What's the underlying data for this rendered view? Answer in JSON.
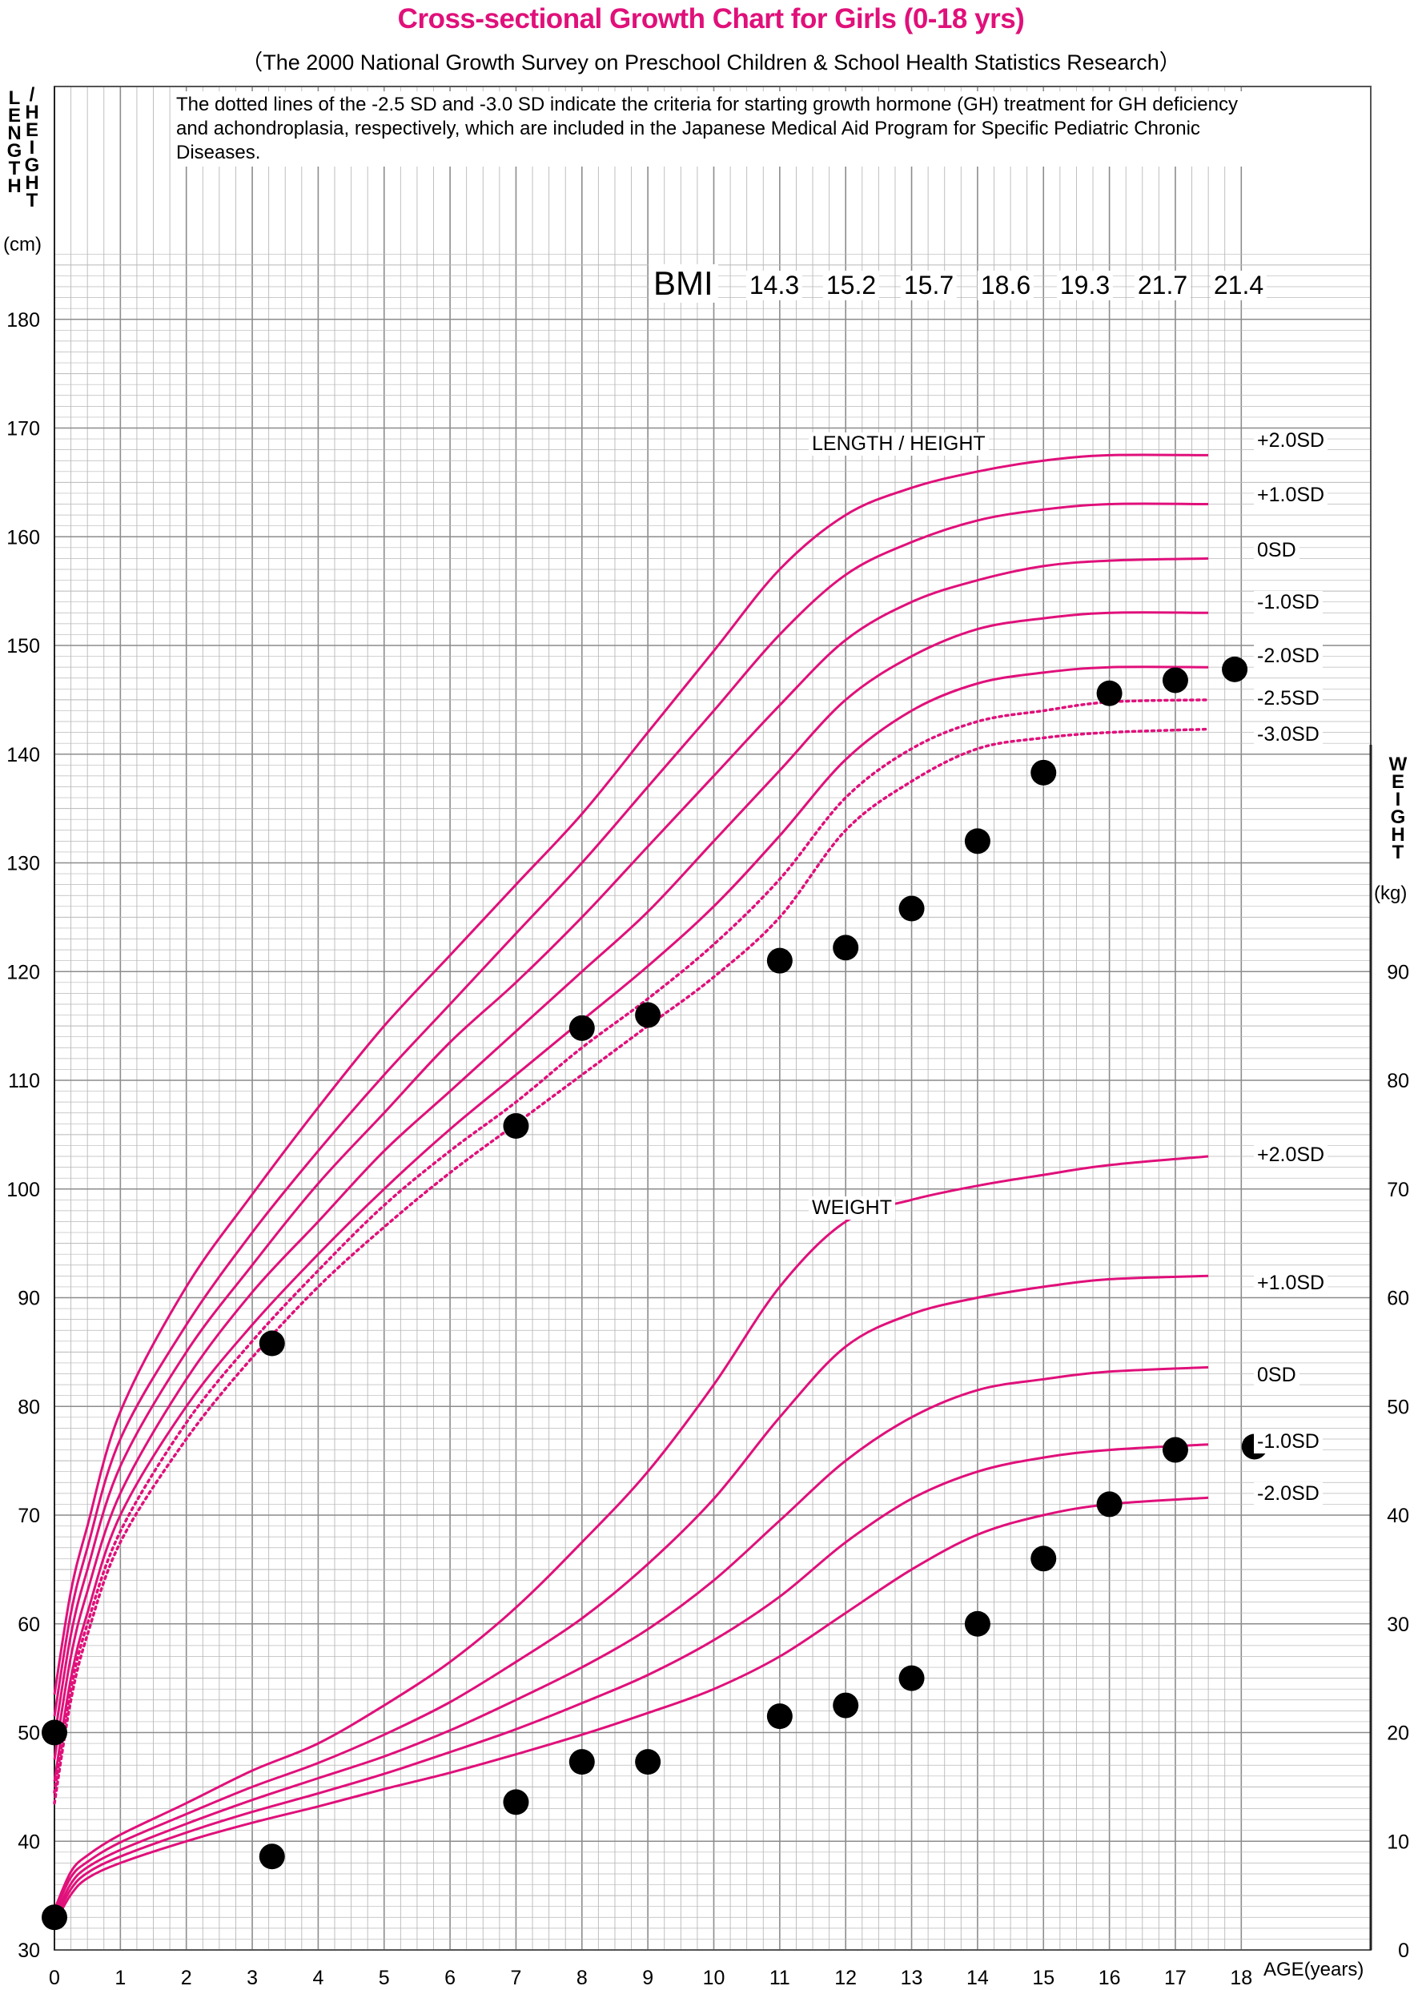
{
  "header": {
    "title": "Cross-sectional Growth Chart for Girls (0-18 yrs)",
    "subtitle": "（The 2000 National Growth Survey on Preschool Children & School Health Statistics Research）",
    "note": "The dotted lines of the -2.5 SD and -3.0 SD indicate the criteria for starting growth hormone (GH) treatment for GH deficiency and achondroplasia, respectively, which are included in the Japanese Medical Aid Program for Specific Pediatric Chronic Diseases."
  },
  "axes": {
    "left_label_chars_1": [
      "L",
      "E",
      "N",
      "G",
      "T",
      "H"
    ],
    "left_label_slash": "/",
    "left_label_chars_2": [
      "H",
      "E",
      "I",
      "G",
      "H",
      "T"
    ],
    "left_unit": "(cm)",
    "right_label_chars": [
      "W",
      "E",
      "I",
      "G",
      "H",
      "T"
    ],
    "right_unit": "(kg)",
    "x_label": "AGE(years)"
  },
  "bmi": {
    "label": "BMI",
    "values": [
      "14.3",
      "15.2",
      "15.7",
      "18.6",
      "19.3",
      "21.7",
      "21.4"
    ]
  },
  "curve_titles": {
    "height": "LENGTH / HEIGHT",
    "weight": "WEIGHT"
  },
  "sd_labels": {
    "height": [
      "+2.0SD",
      "+1.0SD",
      "0SD",
      "-1.0SD",
      "-2.0SD",
      "-2.5SD",
      "-3.0SD"
    ],
    "weight": [
      "+2.0SD",
      "+1.0SD",
      "0SD",
      "-1.0SD",
      "-2.0SD"
    ]
  },
  "colors": {
    "curve": "#e0107a",
    "grid": "#b8b8b8",
    "grid_major": "#8c8c8c",
    "point": "#000000",
    "title": "#e0107a"
  },
  "chart_data": {
    "type": "line",
    "x_axis": {
      "label": "AGE(years)",
      "range": [
        0,
        18
      ],
      "ticks": [
        "0",
        "1",
        "2",
        "3",
        "4",
        "5",
        "6",
        "7",
        "8",
        "9",
        "10",
        "11",
        "12",
        "13",
        "14",
        "15",
        "16",
        "17",
        "18"
      ]
    },
    "y_axis_left": {
      "label": "LENGTH / HEIGHT (cm)",
      "range": [
        30,
        190
      ],
      "ticks": [
        "30",
        "40",
        "50",
        "60",
        "70",
        "80",
        "90",
        "100",
        "110",
        "120",
        "130",
        "140",
        "150",
        "160",
        "170",
        "180"
      ]
    },
    "y_axis_right": {
      "label": "WEIGHT (kg)",
      "range": [
        0,
        110
      ],
      "ticks": [
        "0",
        "10",
        "20",
        "30",
        "40",
        "50",
        "60",
        "70",
        "80",
        "90"
      ]
    },
    "grid": true,
    "height_series": [
      {
        "name": "+2.0SD",
        "dotted": false,
        "points": [
          [
            0,
            53.5
          ],
          [
            0.25,
            63
          ],
          [
            0.5,
            69
          ],
          [
            1,
            79.5
          ],
          [
            2,
            91
          ],
          [
            3,
            99.5
          ],
          [
            4,
            107.5
          ],
          [
            5,
            115
          ],
          [
            6,
            121.5
          ],
          [
            7,
            128
          ],
          [
            8,
            134.5
          ],
          [
            9,
            142
          ],
          [
            10,
            149.5
          ],
          [
            11,
            157
          ],
          [
            12,
            162
          ],
          [
            13,
            164.5
          ],
          [
            14,
            166
          ],
          [
            15,
            167
          ],
          [
            16,
            167.5
          ],
          [
            17.5,
            167.5
          ]
        ]
      },
      {
        "name": "+1.0SD",
        "dotted": false,
        "points": [
          [
            0,
            51.5
          ],
          [
            0.25,
            61
          ],
          [
            0.5,
            67
          ],
          [
            1,
            77
          ],
          [
            2,
            87.5
          ],
          [
            3,
            96
          ],
          [
            4,
            103.5
          ],
          [
            5,
            110.5
          ],
          [
            6,
            117
          ],
          [
            7,
            123.5
          ],
          [
            8,
            130
          ],
          [
            9,
            137
          ],
          [
            10,
            144
          ],
          [
            11,
            151
          ],
          [
            12,
            156.5
          ],
          [
            13,
            159.5
          ],
          [
            14,
            161.5
          ],
          [
            15,
            162.5
          ],
          [
            16,
            163
          ],
          [
            17.5,
            163
          ]
        ]
      },
      {
        "name": "0SD",
        "dotted": false,
        "points": [
          [
            0,
            49.5
          ],
          [
            0.25,
            59
          ],
          [
            0.5,
            65
          ],
          [
            1,
            74.5
          ],
          [
            2,
            85
          ],
          [
            3,
            93
          ],
          [
            4,
            100.5
          ],
          [
            5,
            107
          ],
          [
            6,
            113.5
          ],
          [
            7,
            119
          ],
          [
            8,
            125
          ],
          [
            9,
            131.5
          ],
          [
            10,
            138
          ],
          [
            11,
            144.5
          ],
          [
            12,
            150.5
          ],
          [
            13,
            154
          ],
          [
            14,
            156
          ],
          [
            15,
            157.3
          ],
          [
            16,
            157.8
          ],
          [
            17.5,
            158
          ]
        ]
      },
      {
        "name": "-1.0SD",
        "dotted": false,
        "points": [
          [
            0,
            47.5
          ],
          [
            0.25,
            57
          ],
          [
            0.5,
            63
          ],
          [
            1,
            72
          ],
          [
            2,
            82.5
          ],
          [
            3,
            90.5
          ],
          [
            4,
            97
          ],
          [
            5,
            103.5
          ],
          [
            6,
            109
          ],
          [
            7,
            114.5
          ],
          [
            8,
            120
          ],
          [
            9,
            125.5
          ],
          [
            10,
            132
          ],
          [
            11,
            138.5
          ],
          [
            12,
            145
          ],
          [
            13,
            149
          ],
          [
            14,
            151.5
          ],
          [
            15,
            152.5
          ],
          [
            16,
            153
          ],
          [
            17.5,
            153
          ]
        ]
      },
      {
        "name": "-2.0SD",
        "dotted": false,
        "points": [
          [
            0,
            45.5
          ],
          [
            0.25,
            55
          ],
          [
            0.5,
            61
          ],
          [
            1,
            70
          ],
          [
            2,
            80
          ],
          [
            3,
            87.5
          ],
          [
            4,
            94
          ],
          [
            5,
            100
          ],
          [
            6,
            105.5
          ],
          [
            7,
            110.5
          ],
          [
            8,
            115.5
          ],
          [
            9,
            120.5
          ],
          [
            10,
            126
          ],
          [
            11,
            132.5
          ],
          [
            12,
            139.5
          ],
          [
            13,
            144
          ],
          [
            14,
            146.5
          ],
          [
            15,
            147.5
          ],
          [
            16,
            148
          ],
          [
            17.5,
            148
          ]
        ]
      },
      {
        "name": "-2.5SD",
        "dotted": true,
        "points": [
          [
            0,
            44.5
          ],
          [
            0.25,
            54
          ],
          [
            0.5,
            60
          ],
          [
            1,
            68.5
          ],
          [
            2,
            78.5
          ],
          [
            3,
            86
          ],
          [
            4,
            92.5
          ],
          [
            5,
            98.5
          ],
          [
            6,
            103.5
          ],
          [
            7,
            108
          ],
          [
            8,
            113
          ],
          [
            9,
            117.5
          ],
          [
            10,
            122.5
          ],
          [
            11,
            128.5
          ],
          [
            12,
            136
          ],
          [
            13,
            140.5
          ],
          [
            14,
            143
          ],
          [
            15,
            144
          ],
          [
            16,
            144.8
          ],
          [
            17.5,
            145
          ]
        ]
      },
      {
        "name": "-3.0SD",
        "dotted": true,
        "points": [
          [
            0,
            43.5
          ],
          [
            0.25,
            53
          ],
          [
            0.5,
            59
          ],
          [
            1,
            67.5
          ],
          [
            2,
            77
          ],
          [
            3,
            84.5
          ],
          [
            4,
            91
          ],
          [
            5,
            96.5
          ],
          [
            6,
            101.5
          ],
          [
            7,
            106
          ],
          [
            8,
            110.5
          ],
          [
            9,
            115
          ],
          [
            10,
            119.5
          ],
          [
            11,
            125
          ],
          [
            12,
            133
          ],
          [
            13,
            137.5
          ],
          [
            14,
            140.5
          ],
          [
            15,
            141.5
          ],
          [
            16,
            142
          ],
          [
            17.5,
            142.3
          ]
        ]
      }
    ],
    "weight_series": [
      {
        "name": "+2.0SD",
        "points": [
          [
            0,
            3.7
          ],
          [
            0.25,
            7.2
          ],
          [
            0.5,
            8.7
          ],
          [
            1,
            10.6
          ],
          [
            2,
            13.5
          ],
          [
            3,
            16.5
          ],
          [
            4,
            19
          ],
          [
            5,
            22.5
          ],
          [
            6,
            26.5
          ],
          [
            7,
            31.5
          ],
          [
            8,
            37.5
          ],
          [
            9,
            44
          ],
          [
            10,
            52
          ],
          [
            11,
            61
          ],
          [
            12,
            67
          ],
          [
            13,
            69
          ],
          [
            14,
            70.3
          ],
          [
            15,
            71.3
          ],
          [
            16,
            72.2
          ],
          [
            17.5,
            73
          ]
        ]
      },
      {
        "name": "+1.0SD",
        "points": [
          [
            0,
            3.4
          ],
          [
            0.25,
            6.7
          ],
          [
            0.5,
            8.1
          ],
          [
            1,
            9.9
          ],
          [
            2,
            12.5
          ],
          [
            3,
            15
          ],
          [
            4,
            17.2
          ],
          [
            5,
            19.8
          ],
          [
            6,
            22.8
          ],
          [
            7,
            26.5
          ],
          [
            8,
            30.5
          ],
          [
            9,
            35.5
          ],
          [
            10,
            41.5
          ],
          [
            11,
            49
          ],
          [
            12,
            55.5
          ],
          [
            13,
            58.5
          ],
          [
            14,
            60
          ],
          [
            15,
            61
          ],
          [
            16,
            61.7
          ],
          [
            17.5,
            62
          ]
        ]
      },
      {
        "name": "0SD",
        "points": [
          [
            0,
            3.0
          ],
          [
            0.25,
            6.1
          ],
          [
            0.5,
            7.6
          ],
          [
            1,
            9.2
          ],
          [
            2,
            11.6
          ],
          [
            3,
            13.8
          ],
          [
            4,
            15.8
          ],
          [
            5,
            17.8
          ],
          [
            6,
            20.2
          ],
          [
            7,
            23
          ],
          [
            8,
            26
          ],
          [
            9,
            29.5
          ],
          [
            10,
            34
          ],
          [
            11,
            39.5
          ],
          [
            12,
            45
          ],
          [
            13,
            49
          ],
          [
            14,
            51.5
          ],
          [
            15,
            52.5
          ],
          [
            16,
            53.2
          ],
          [
            17.5,
            53.6
          ]
        ]
      },
      {
        "name": "-1.0SD",
        "points": [
          [
            0,
            2.7
          ],
          [
            0.25,
            5.6
          ],
          [
            0.5,
            7.1
          ],
          [
            1,
            8.6
          ],
          [
            2,
            10.8
          ],
          [
            3,
            12.7
          ],
          [
            4,
            14.4
          ],
          [
            5,
            16.2
          ],
          [
            6,
            18.2
          ],
          [
            7,
            20.3
          ],
          [
            8,
            22.7
          ],
          [
            9,
            25.3
          ],
          [
            10,
            28.5
          ],
          [
            11,
            32.5
          ],
          [
            12,
            37.5
          ],
          [
            13,
            41.5
          ],
          [
            14,
            44
          ],
          [
            15,
            45.3
          ],
          [
            16,
            46
          ],
          [
            17.5,
            46.5
          ]
        ]
      },
      {
        "name": "-2.0SD",
        "points": [
          [
            0,
            2.4
          ],
          [
            0.25,
            5.1
          ],
          [
            0.5,
            6.6
          ],
          [
            1,
            8.0
          ],
          [
            2,
            10.0
          ],
          [
            3,
            11.7
          ],
          [
            4,
            13.2
          ],
          [
            5,
            14.8
          ],
          [
            6,
            16.3
          ],
          [
            7,
            18
          ],
          [
            8,
            19.8
          ],
          [
            9,
            21.8
          ],
          [
            10,
            24
          ],
          [
            11,
            27
          ],
          [
            12,
            31
          ],
          [
            13,
            35
          ],
          [
            14,
            38.2
          ],
          [
            15,
            40
          ],
          [
            16,
            41
          ],
          [
            17.5,
            41.6
          ]
        ]
      }
    ],
    "height_points": [
      [
        0,
        50
      ],
      [
        3.3,
        85.8
      ],
      [
        7,
        105.8
      ],
      [
        8,
        114.8
      ],
      [
        9,
        116
      ],
      [
        11,
        121
      ],
      [
        12,
        122.2
      ],
      [
        13,
        125.8
      ],
      [
        14,
        132
      ],
      [
        15,
        138.3
      ],
      [
        16,
        145.6
      ],
      [
        17,
        146.8
      ],
      [
        17.9,
        147.8
      ]
    ],
    "weight_points": [
      [
        0,
        3.0
      ],
      [
        3.3,
        8.6
      ],
      [
        7,
        13.6
      ],
      [
        8,
        17.3
      ],
      [
        9,
        17.3
      ],
      [
        11,
        21.5
      ],
      [
        12,
        22.5
      ],
      [
        13,
        25
      ],
      [
        14,
        30
      ],
      [
        15,
        36
      ],
      [
        16,
        41
      ],
      [
        17,
        46
      ],
      [
        18.2,
        46.3
      ]
    ]
  }
}
